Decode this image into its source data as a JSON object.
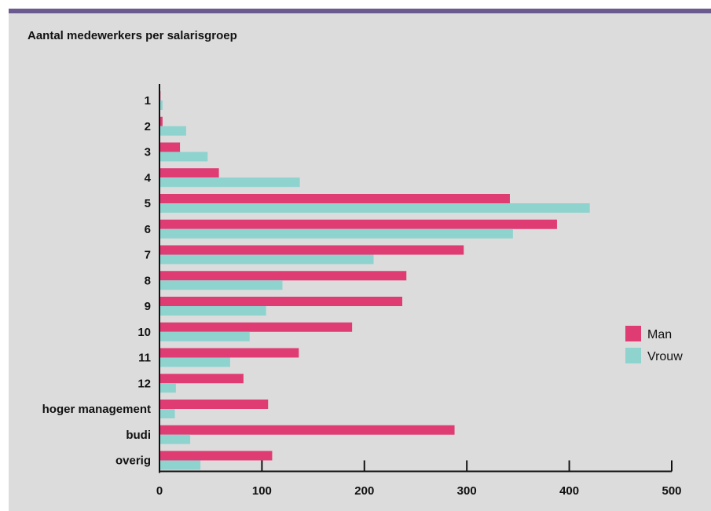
{
  "colors": {
    "man": "#e03c74",
    "vrouw": "#8fd3cf",
    "background": "#dcdcdc",
    "top_bar": "#6b5a8e"
  },
  "chart_data": {
    "type": "bar",
    "orientation": "horizontal",
    "title": "Aantal medewerkers per salarisgroep",
    "categories": [
      "1",
      "2",
      "3",
      "4",
      "5",
      "6",
      "7",
      "8",
      "9",
      "10",
      "11",
      "12",
      "hoger management",
      "budi",
      "overig"
    ],
    "series": [
      {
        "name": "Man",
        "values": [
          1,
          3,
          20,
          58,
          342,
          388,
          297,
          241,
          237,
          188,
          136,
          82,
          106,
          288,
          110
        ]
      },
      {
        "name": "Vrouw",
        "values": [
          3,
          26,
          47,
          137,
          420,
          345,
          209,
          120,
          104,
          88,
          69,
          16,
          15,
          30,
          40
        ]
      }
    ],
    "xlim": [
      0,
      500
    ],
    "xticks": [
      "0",
      "100",
      "200",
      "300",
      "400",
      "500"
    ],
    "grid": false,
    "legend_position": "right"
  }
}
